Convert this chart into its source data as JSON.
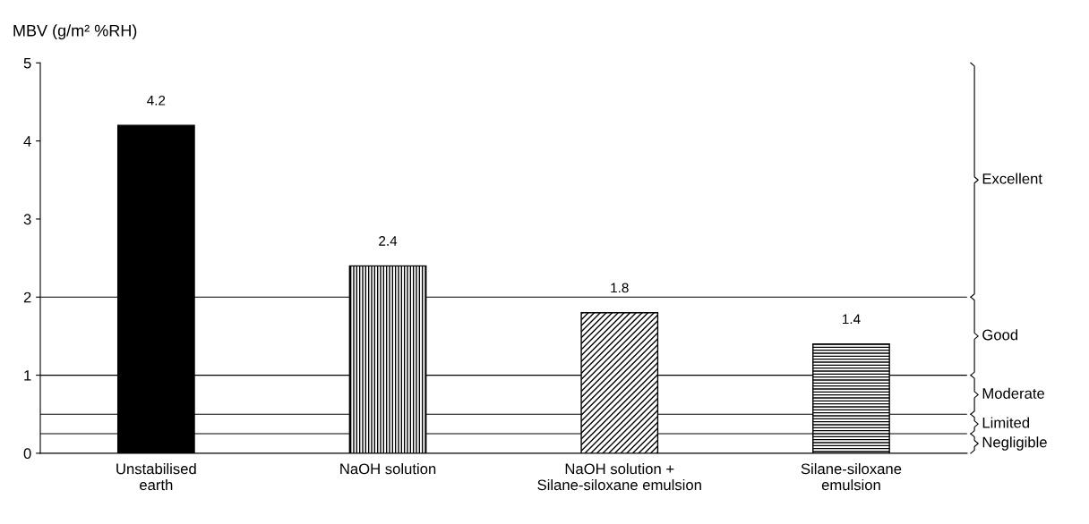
{
  "chart_data": {
    "type": "bar",
    "ylabel": "MBV (g/m² %RH)",
    "categories": [
      "Unstabilised\nearth",
      "NaOH solution",
      "NaOH solution +\nSilane-siloxane emulsion",
      "Silane-siloxane\nemulsion"
    ],
    "values": [
      4.2,
      2.4,
      1.8,
      1.4
    ],
    "colors": [
      "#000000",
      "#000000",
      "#000000",
      "#000000"
    ],
    "data_labels": true,
    "ylim": [
      0,
      5
    ],
    "yticks": [
      0,
      1,
      2,
      3,
      4,
      5
    ],
    "grid": false,
    "ref_lines": [
      {
        "axis": "y",
        "value": 2,
        "color": "#000000"
      },
      {
        "axis": "y",
        "value": 1,
        "color": "#000000"
      },
      {
        "axis": "y",
        "value": 0.5,
        "color": "#000000"
      },
      {
        "axis": "y",
        "value": 0.25,
        "color": "#000000"
      }
    ],
    "annotations": [
      "Excellent",
      "Good",
      "Moderate",
      "Limited",
      "Negligible"
    ]
  }
}
